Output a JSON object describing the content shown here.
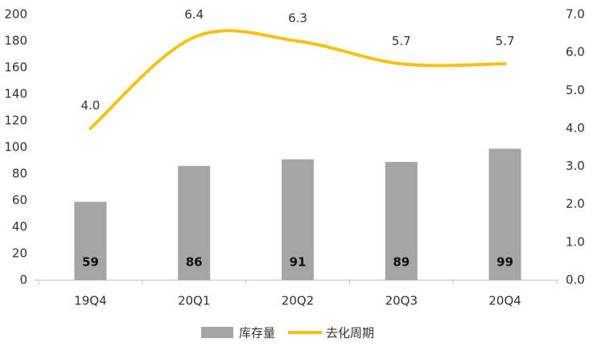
{
  "chart_data": {
    "type": "bar",
    "categories": [
      "19Q4",
      "20Q1",
      "20Q2",
      "20Q3",
      "20Q4"
    ],
    "series": [
      {
        "name": "库存量",
        "type": "bar",
        "color": "#a5a5a5",
        "values": [
          59,
          86,
          91,
          89,
          99
        ]
      },
      {
        "name": "去化周期",
        "type": "line",
        "axis": "y2",
        "color": "#f2c216",
        "values": [
          4.0,
          6.4,
          6.3,
          5.7,
          5.7
        ],
        "value_labels": [
          "4.0",
          "6.4",
          "6.3",
          "5.7",
          "5.7"
        ]
      }
    ],
    "ylim": [
      0,
      200
    ],
    "yticks": [
      0,
      20,
      40,
      60,
      80,
      100,
      120,
      140,
      160,
      180,
      200
    ],
    "y2lim": [
      0,
      7
    ],
    "y2ticks": [
      {
        "value": 0,
        "label": "0.0"
      },
      {
        "value": 1,
        "label": "1.0"
      },
      {
        "value": 2,
        "label": "2.0"
      },
      {
        "value": 3,
        "label": "3.0"
      },
      {
        "value": 4,
        "label": "4.0"
      },
      {
        "value": 5,
        "label": "5.0"
      },
      {
        "value": 6,
        "label": "6.0"
      },
      {
        "value": 7,
        "label": "7.0"
      }
    ],
    "grid": false,
    "legend": "bottom"
  }
}
